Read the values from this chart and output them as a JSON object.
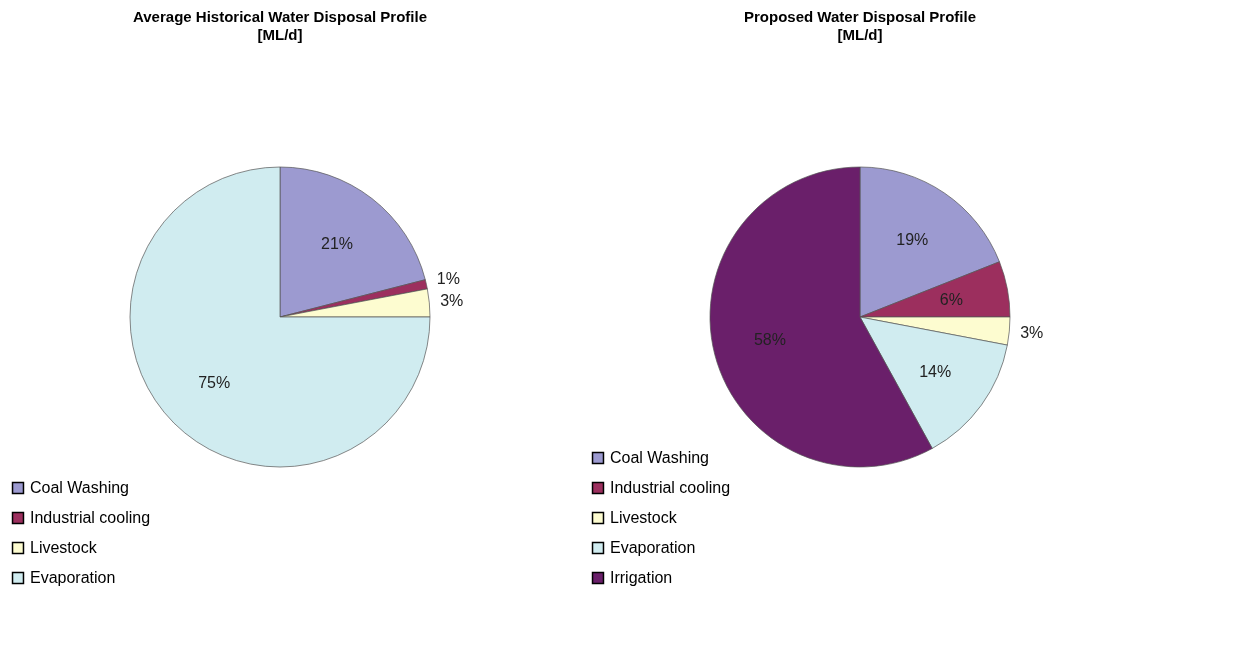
{
  "chart_data": [
    {
      "type": "pie",
      "title": "Average Historical Water Disposal Profile",
      "subtitle": "[ML/d]",
      "categories": [
        "Coal Washing",
        "Industrial cooling",
        "Livestock",
        "Evaporation"
      ],
      "values": [
        21,
        1,
        3,
        75
      ],
      "colors": [
        "#9c9ad0",
        "#9c2f5e",
        "#fdfcd0",
        "#d0ecf0"
      ],
      "value_labels": [
        "21%",
        "1%",
        "3%",
        "75%"
      ],
      "legend": "bottom left"
    },
    {
      "type": "pie",
      "title": "Proposed Water Disposal Profile",
      "subtitle": "[ML/d]",
      "categories": [
        "Coal Washing",
        "Industrial cooling",
        "Livestock",
        "Evaporation",
        "Irrigation"
      ],
      "values": [
        19,
        6,
        3,
        14,
        58
      ],
      "colors": [
        "#9c9ad0",
        "#9c2f5e",
        "#fdfcd0",
        "#d0ecf0",
        "#6a1f6a"
      ],
      "value_labels": [
        "19%",
        "6%",
        "3%",
        "14%",
        "58%"
      ],
      "legend": "bottom left"
    }
  ]
}
